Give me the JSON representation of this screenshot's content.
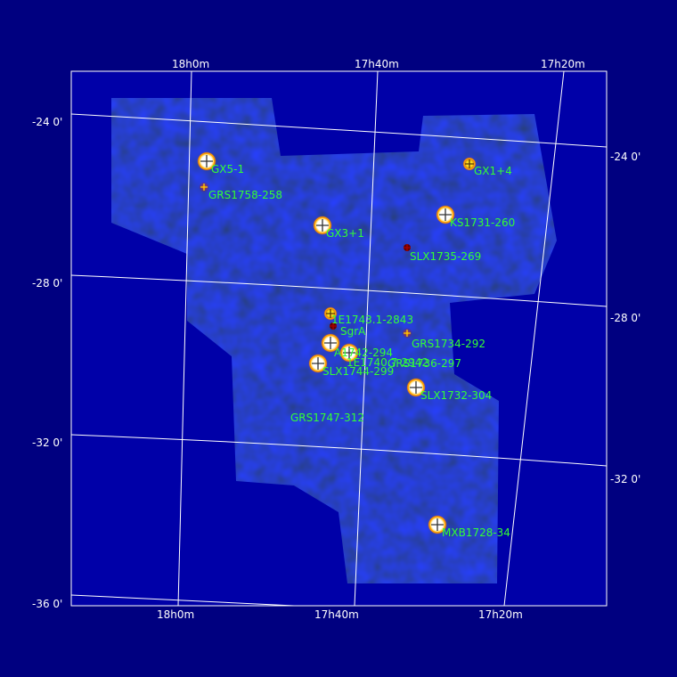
{
  "colors": {
    "background": "#000080",
    "plot_background": "#0000a8",
    "grid": "#ffffff",
    "source_label": "#33ff33",
    "axis_text": "#ffffff",
    "bright_source": "#ffffff",
    "source_ring": "#ff9900",
    "faint_source": "#cc0000"
  },
  "axes": {
    "ra_top": [
      "18h0m",
      "17h40m",
      "17h20m"
    ],
    "ra_bottom": [
      "18h0m",
      "17h40m",
      "17h20m"
    ],
    "dec_left": [
      "-24 0'",
      "-28 0'",
      "-32 0'",
      "-36 0'"
    ],
    "dec_right": [
      "-24 0'",
      "-28 0'",
      "-32 0'"
    ]
  },
  "sources": [
    {
      "name": "GX5-1",
      "type": "bright"
    },
    {
      "name": "GRS1758-258",
      "type": "faint"
    },
    {
      "name": "GX1+4",
      "type": "medium"
    },
    {
      "name": "GX3+1",
      "type": "bright"
    },
    {
      "name": "KS1731-260",
      "type": "bright"
    },
    {
      "name": "SLX1735-269",
      "type": "dim"
    },
    {
      "name": "1E1743.1-2843",
      "type": "medium"
    },
    {
      "name": "SgrA",
      "type": "dim"
    },
    {
      "name": "GRS1734-292",
      "type": "faint"
    },
    {
      "name": "A1742-294",
      "type": "bright"
    },
    {
      "name": "1E1740.7-2942",
      "type": "bright"
    },
    {
      "name": "GRS1736-297",
      "type": "none"
    },
    {
      "name": "SLX1744-299",
      "type": "bright"
    },
    {
      "name": "SLX1732-304",
      "type": "bright"
    },
    {
      "name": "GRS1747-312",
      "type": "none"
    },
    {
      "name": "MXB1728-34",
      "type": "bright"
    }
  ]
}
